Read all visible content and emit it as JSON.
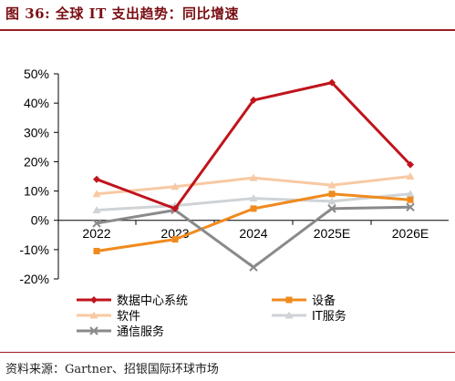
{
  "header": {
    "title": "图 36: 全球 IT 支出趋势：同比增速"
  },
  "footer": {
    "source": "资料来源：Gartner、招银国际环球市场"
  },
  "chart_data": {
    "type": "line",
    "title": "",
    "xlabel": "",
    "ylabel": "",
    "x": [
      "2022",
      "2023",
      "2024",
      "2025E",
      "2026E"
    ],
    "ylim": [
      -0.2,
      0.5
    ],
    "yticks": [
      "50%",
      "40%",
      "30%",
      "20%",
      "10%",
      "0%",
      "-10%",
      "-20%"
    ],
    "grid": false,
    "legend": "bottom",
    "series": [
      {
        "name": "数据中心系统",
        "values": [
          0.14,
          0.04,
          0.41,
          0.47,
          0.19
        ],
        "color": "#c0141c",
        "marker": "diamond"
      },
      {
        "name": "设备",
        "values": [
          -0.105,
          -0.065,
          0.04,
          0.09,
          0.07
        ],
        "color": "#f08a1e",
        "marker": "square"
      },
      {
        "name": "软件",
        "values": [
          0.09,
          0.115,
          0.145,
          0.12,
          0.15
        ],
        "color": "#f8c9a3",
        "marker": "triangle"
      },
      {
        "name": "IT服务",
        "values": [
          0.035,
          0.05,
          0.075,
          0.065,
          0.09
        ],
        "color": "#cfd3d6",
        "marker": "triangle"
      },
      {
        "name": "通信服务",
        "values": [
          -0.01,
          0.035,
          -0.16,
          0.04,
          0.045
        ],
        "color": "#8a8a8a",
        "marker": "x"
      }
    ]
  }
}
